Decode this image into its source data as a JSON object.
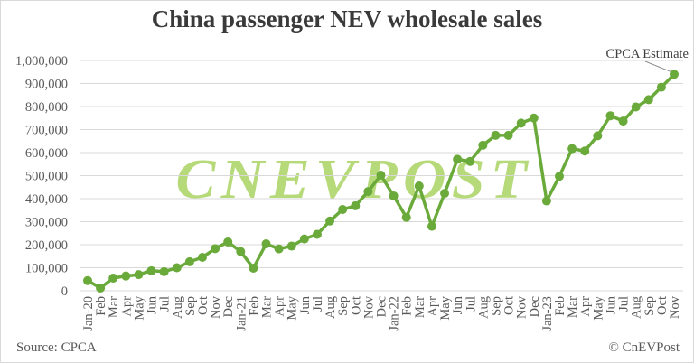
{
  "header": {
    "title": "China passenger NEV wholesale sales"
  },
  "footer": {
    "source": "Source: CPCA",
    "copyright": "© CnEVPost"
  },
  "watermark": {
    "text": "CNEVPOST",
    "color": "#b6d97a"
  },
  "annotation": {
    "text": "CPCA Estimate",
    "target_index": 46
  },
  "colors": {
    "line": "#6aaa3a",
    "grid": "#d9d9d9",
    "axis_text": "#595959",
    "title": "#3a3a3a"
  },
  "chart_data": {
    "type": "line",
    "title": "China passenger NEV wholesale sales",
    "xlabel": "",
    "ylabel": "",
    "ylim": [
      0,
      1000000
    ],
    "yticks": [
      "0",
      "100,000",
      "200,000",
      "300,000",
      "400,000",
      "500,000",
      "600,000",
      "700,000",
      "800,000",
      "900,000",
      "1,000,000"
    ],
    "grid": true,
    "legend": "none",
    "categories": [
      "Jan-20",
      "Feb",
      "Mar",
      "Apr",
      "May",
      "Jun",
      "Jul",
      "Aug",
      "Sep",
      "Oct",
      "Nov",
      "Dec",
      "Jan-21",
      "Feb",
      "Mar",
      "Apr",
      "May",
      "Jun",
      "Jul",
      "Aug",
      "Sep",
      "Oct",
      "Nov",
      "Dec",
      "Jan-22",
      "Feb",
      "Mar",
      "Apr",
      "May",
      "Jun",
      "Jul",
      "Aug",
      "Sep",
      "Oct",
      "Nov",
      "Dec",
      "Jan-23",
      "Feb",
      "Mar",
      "Apr",
      "May",
      "Jun",
      "Jul",
      "Aug",
      "Sep",
      "Oct",
      "Nov"
    ],
    "series": [
      {
        "name": "NEV wholesale sales",
        "values": [
          44000,
          12000,
          55000,
          64000,
          70000,
          87000,
          83000,
          100000,
          126000,
          145000,
          183000,
          212000,
          170000,
          98000,
          204000,
          182000,
          194000,
          225000,
          245000,
          303000,
          353000,
          369000,
          431000,
          502000,
          412000,
          319000,
          455000,
          280000,
          423000,
          571000,
          562000,
          632000,
          675000,
          675000,
          728000,
          750000,
          390000,
          497000,
          617000,
          607000,
          673000,
          760000,
          737000,
          798000,
          830000,
          884000,
          940000
        ]
      }
    ],
    "annotations": [
      {
        "text": "CPCA Estimate",
        "category": "Nov",
        "index": 46
      }
    ]
  }
}
